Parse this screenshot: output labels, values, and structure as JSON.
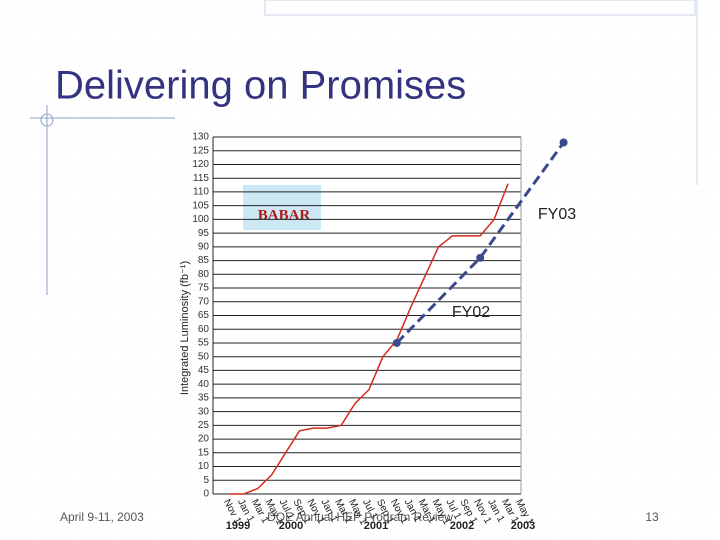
{
  "slide": {
    "title": "Delivering on Promises",
    "footer_left": "April 9-11, 2003",
    "footer_center": "DOE Annual HEP Program Review",
    "page_number": "13"
  },
  "chart_data": {
    "type": "line",
    "y_label": "Integrated Luminosity (fb⁻¹)",
    "annotations": [
      "BABAR",
      "FY02",
      "FY03"
    ],
    "categories": [
      "Nov 1",
      "Jan 1",
      "Mar 1",
      "May 1",
      "Jul 1",
      "Sep 1",
      "Nov 1",
      "Jan 1",
      "Mar 1",
      "May 1",
      "Jul 1",
      "Sep 1",
      "Nov 1",
      "Jan 1",
      "Mar 1",
      "May 1",
      "Jul 1",
      "Sep 1",
      "Nov 1",
      "Jan 1",
      "Mar 1",
      "May 1"
    ],
    "year_labels": [
      "1999",
      "2000",
      "2001",
      "2002",
      "2003"
    ],
    "series": [
      {
        "color": "#d42a1e",
        "values": [
          0,
          0,
          2,
          7,
          15,
          23,
          24,
          24,
          25,
          33,
          38,
          50,
          56,
          68,
          79,
          90,
          94,
          94,
          94,
          100,
          113,
          null
        ]
      },
      {
        "color": "#3b4a8c",
        "dashed": true,
        "x": [
          12,
          18,
          24
        ],
        "values": [
          55,
          86,
          128
        ]
      }
    ],
    "ylim": [
      0,
      130
    ],
    "yticks": [
      0,
      5,
      10,
      15,
      20,
      25,
      30,
      35,
      40,
      45,
      50,
      55,
      60,
      65,
      70,
      75,
      80,
      85,
      90,
      95,
      100,
      105,
      110,
      115,
      120,
      125,
      130
    ],
    "grid": true
  }
}
